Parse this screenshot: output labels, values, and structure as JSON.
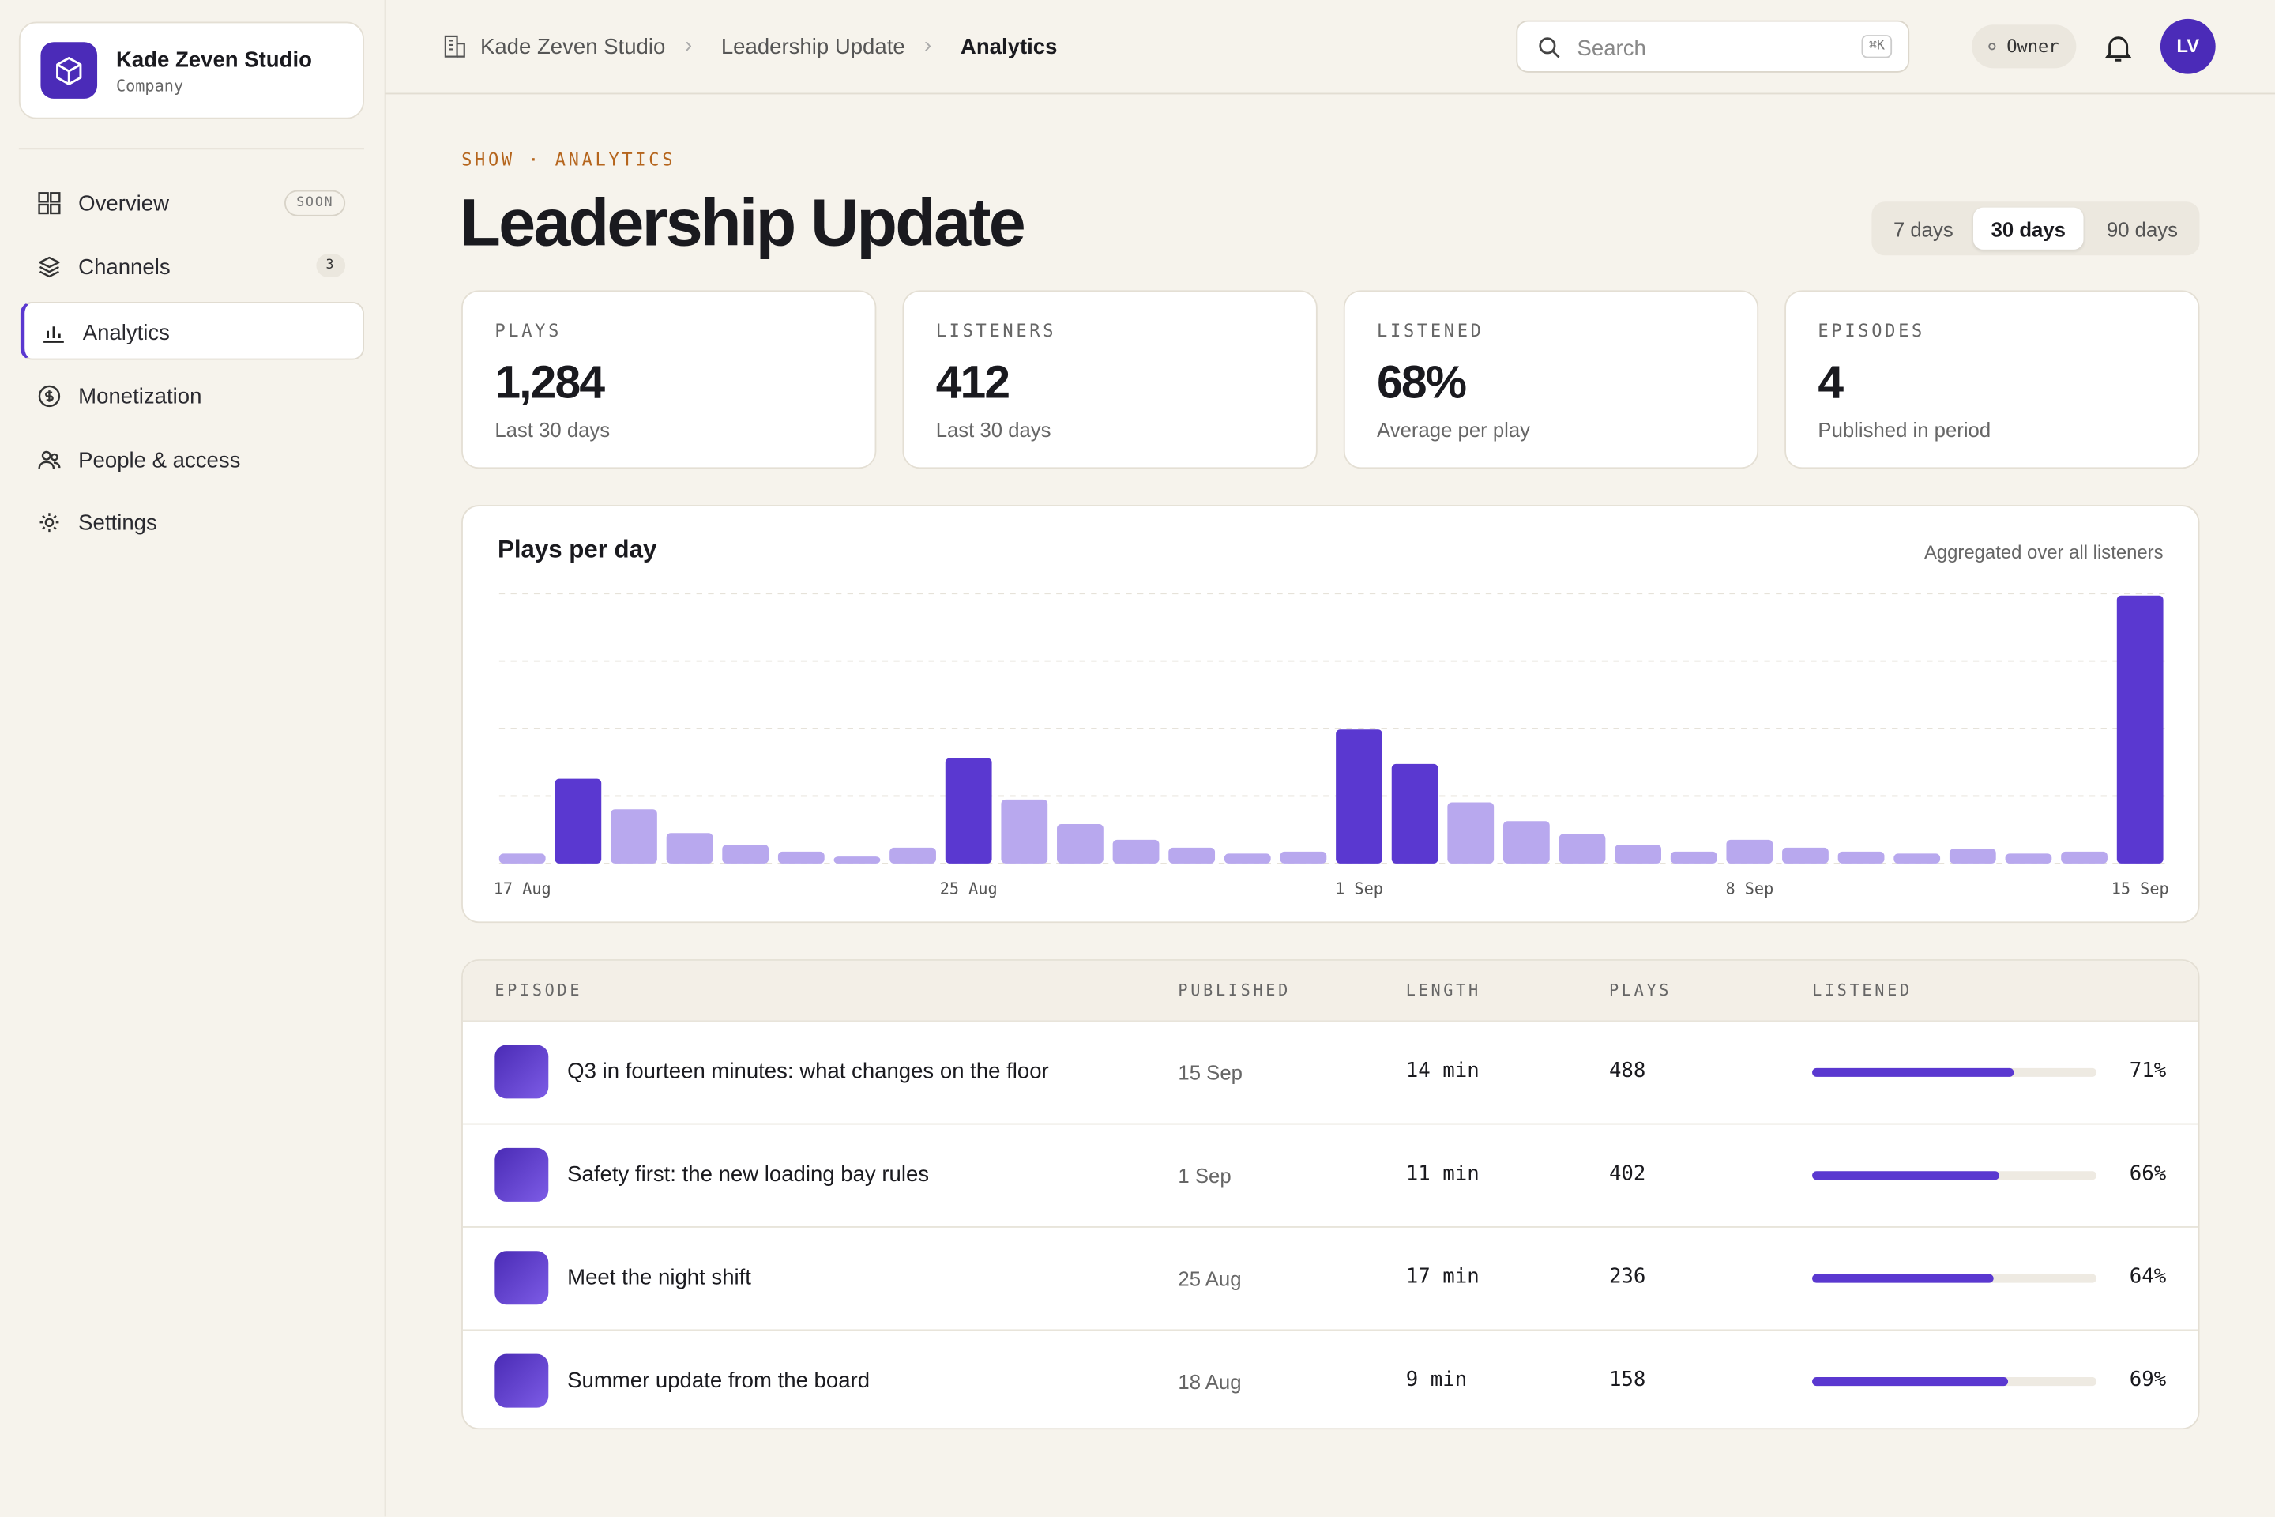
{
  "sidebar": {
    "workspace": {
      "name": "Kade Zeven Studio",
      "type": "Company"
    },
    "nav": [
      {
        "label": "Overview",
        "badge": "SOON"
      },
      {
        "label": "Channels",
        "badge": "3"
      },
      {
        "label": "Analytics"
      },
      {
        "label": "Monetization"
      },
      {
        "label": "People & access"
      },
      {
        "label": "Settings"
      }
    ]
  },
  "topbar": {
    "breadcrumbs": [
      "Kade Zeven Studio",
      "Leadership Update",
      "Analytics"
    ],
    "search_placeholder": "Search",
    "search_shortcut": "⌘K",
    "role": "Owner",
    "avatar": "LV"
  },
  "page": {
    "eyebrow": "SHOW · ANALYTICS",
    "title": "Leadership Update",
    "ranges": [
      "7 days",
      "30 days",
      "90 days"
    ]
  },
  "stats": [
    {
      "label": "PLAYS",
      "value": "1,284",
      "note": "Last 30 days"
    },
    {
      "label": "LISTENERS",
      "value": "412",
      "note": "Last 30 days"
    },
    {
      "label": "LISTENED",
      "value": "68%",
      "note": "Average per play"
    },
    {
      "label": "EPISODES",
      "value": "4",
      "note": "Published in period"
    }
  ],
  "chart": {
    "type": "bar",
    "title": "Plays per day",
    "subtitle": "Aggregated over all listeners",
    "categories": [
      "17 Aug",
      null,
      null,
      null,
      null,
      null,
      null,
      null,
      "25 Aug",
      null,
      null,
      null,
      null,
      null,
      null,
      "1 Sep",
      null,
      null,
      null,
      null,
      null,
      null,
      "8 Sep",
      null,
      null,
      null,
      null,
      null,
      null,
      "15 Sep"
    ],
    "values": [
      10,
      86,
      55,
      31,
      19,
      12,
      7,
      16,
      107,
      65,
      40,
      24,
      16,
      10,
      12,
      136,
      101,
      62,
      43,
      30,
      19,
      12,
      24,
      16,
      12,
      10,
      15,
      10,
      12,
      272
    ],
    "ylim": [
      0,
      274
    ],
    "yticks": [
      0,
      68.5,
      137,
      205.5,
      274
    ],
    "grid": true,
    "color": "#b8a8ee",
    "highlight_color": "#5a38d0",
    "highlighted": [
      1,
      8,
      15,
      16,
      29
    ]
  },
  "table": {
    "columns": [
      "EPISODE",
      "PUBLISHED",
      "LENGTH",
      "PLAYS",
      "LISTENED"
    ],
    "rows": [
      {
        "title": "Q3 in fourteen minutes: what changes on the floor",
        "published": "15 Sep",
        "length": "14 min",
        "plays": 488,
        "listened": 71,
        "listened_label": "71%"
      },
      {
        "title": "Safety first: the new loading bay rules",
        "published": "1 Sep",
        "length": "11 min",
        "plays": 402,
        "listened": 66,
        "listened_label": "66%"
      },
      {
        "title": "Meet the night shift",
        "published": "25 Aug",
        "length": "17 min",
        "plays": 236,
        "listened": 64,
        "listened_label": "64%"
      },
      {
        "title": "Summer update from the board",
        "published": "18 Aug",
        "length": "9 min",
        "plays": 158,
        "listened": 69,
        "listened_label": "69%"
      }
    ]
  }
}
